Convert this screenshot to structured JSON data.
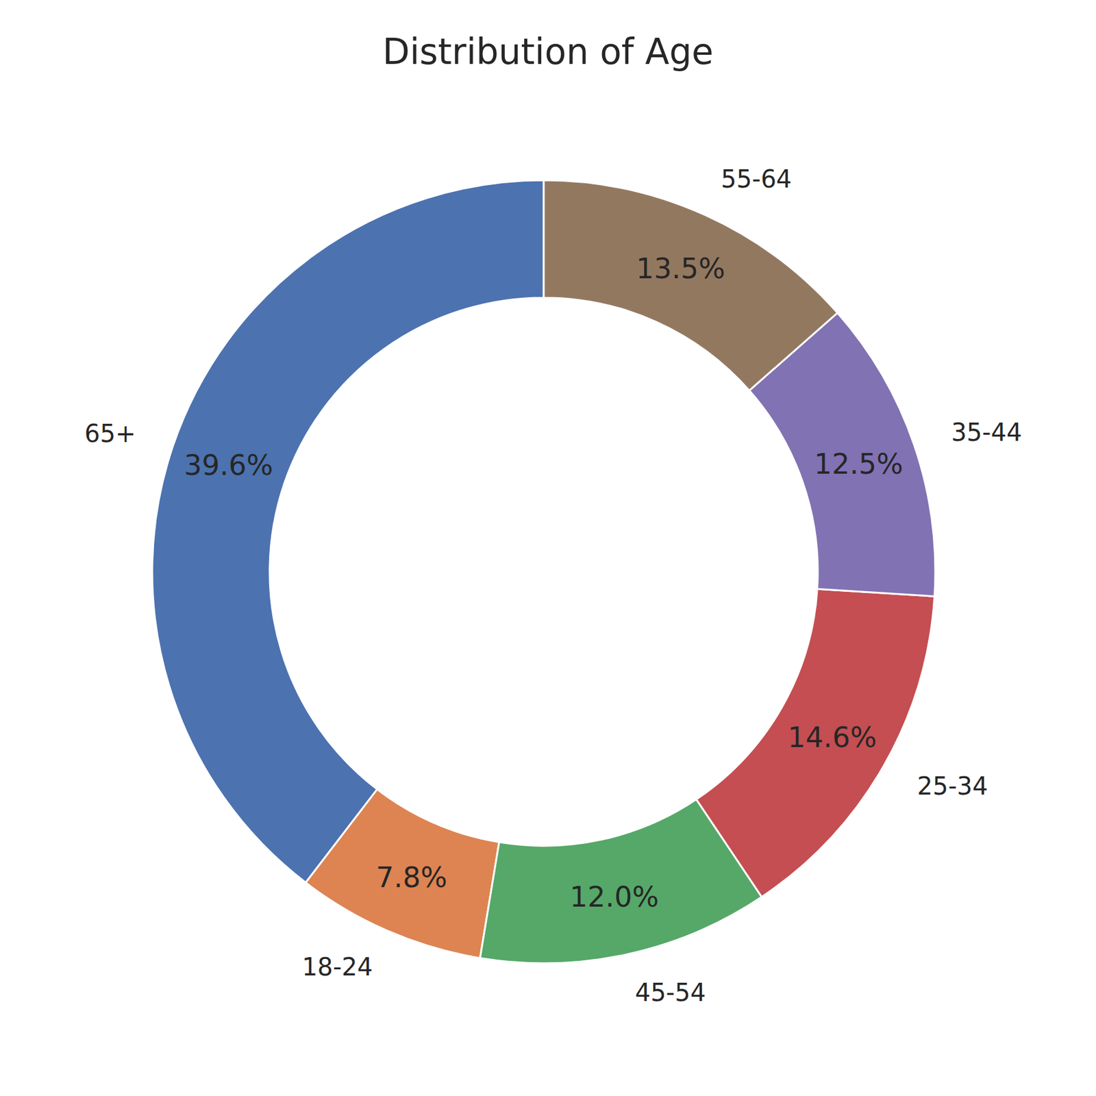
{
  "chart_data": {
    "type": "pie",
    "title": "Distribution of Age",
    "categories": [
      "65+",
      "18-24",
      "45-54",
      "25-34",
      "35-44",
      "55-64"
    ],
    "values": [
      39.6,
      7.8,
      12.0,
      14.6,
      12.5,
      13.5
    ],
    "value_labels": [
      "39.6%",
      "7.8%",
      "12.0%",
      "14.6%",
      "12.5%",
      "13.5%"
    ],
    "colors": [
      "#4c72b0",
      "#dd8452",
      "#55a868",
      "#c44e52",
      "#8172b3",
      "#937860"
    ],
    "data_labels": true
  }
}
